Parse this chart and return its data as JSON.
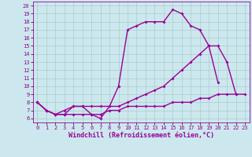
{
  "xlabel": "Windchill (Refroidissement éolien,°C)",
  "bg_color": "#cce8ee",
  "line_color": "#990099",
  "grid_color": "#aacccc",
  "xlim": [
    -0.5,
    23.5
  ],
  "ylim": [
    5.5,
    20.5
  ],
  "yticks": [
    6,
    7,
    8,
    9,
    10,
    11,
    12,
    13,
    14,
    15,
    16,
    17,
    18,
    19,
    20
  ],
  "xticks": [
    0,
    1,
    2,
    3,
    4,
    5,
    6,
    7,
    8,
    9,
    10,
    11,
    12,
    13,
    14,
    15,
    16,
    17,
    18,
    19,
    20,
    21,
    22,
    23
  ],
  "line1_x": [
    0,
    1,
    2,
    3,
    4,
    5,
    6,
    7,
    8,
    9,
    10,
    11,
    12,
    13,
    14,
    15,
    16,
    17,
    18,
    19,
    20
  ],
  "line1_y": [
    8,
    7,
    6.5,
    6.5,
    7.5,
    7.5,
    6.5,
    6,
    7.5,
    10,
    17,
    17.5,
    18,
    18,
    18,
    19.5,
    19,
    17.5,
    17,
    15,
    10.5
  ],
  "line2_x": [
    0,
    1,
    2,
    3,
    4,
    5,
    6,
    7,
    8,
    9,
    10,
    11,
    12,
    13,
    14,
    15,
    16,
    17,
    18,
    19,
    20,
    21,
    22
  ],
  "line2_y": [
    8,
    7,
    6.5,
    7,
    7.5,
    7.5,
    7.5,
    7.5,
    7.5,
    7.5,
    8,
    8.5,
    9,
    9.5,
    10,
    11,
    12,
    13,
    14,
    15,
    15,
    13,
    9
  ],
  "line3_x": [
    0,
    1,
    2,
    3,
    4,
    5,
    6,
    7,
    8,
    9,
    10,
    11,
    12,
    13,
    14,
    15,
    16,
    17,
    18,
    19,
    20,
    21,
    22,
    23
  ],
  "line3_y": [
    8,
    7,
    6.5,
    6.5,
    6.5,
    6.5,
    6.5,
    6.5,
    7,
    7,
    7.5,
    7.5,
    7.5,
    7.5,
    7.5,
    8,
    8,
    8,
    8.5,
    8.5,
    9,
    9,
    9,
    9
  ],
  "marker_size": 2,
  "line_width": 1.0,
  "tick_fontsize": 5.0,
  "xlabel_fontsize": 6.0
}
